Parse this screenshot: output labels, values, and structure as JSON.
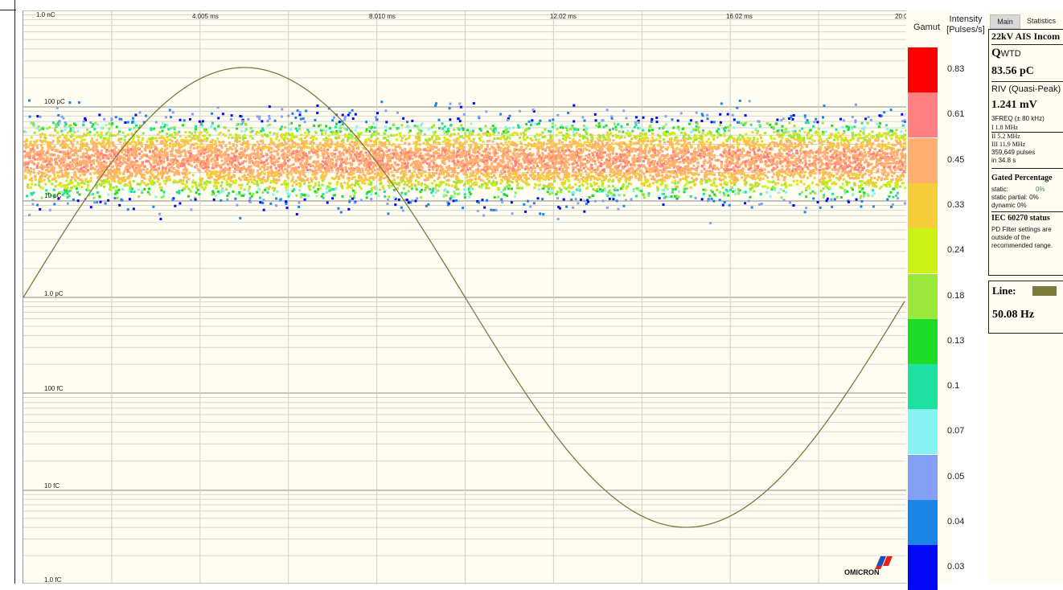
{
  "plot": {
    "x_axis_labels": [
      "4.005 ms",
      "8.010 ms",
      "12.02 ms",
      "16.02 ms",
      "20.0"
    ],
    "y_axis_labels": [
      "1.0 nC",
      "100 pC",
      "10 pC",
      "1.0 pC",
      "100 fC",
      "10 fC",
      "1.0 fC"
    ],
    "sine_color": "#7a7a3c"
  },
  "gamut": {
    "title": "Gamut",
    "intensity_title_line1": "Intensity",
    "intensity_title_line2": "[Pulses/s]",
    "colors": [
      "#ff0000",
      "#ff8080",
      "#ffb070",
      "#f5cc3a",
      "#ccf215",
      "#9ae83a",
      "#1cdc28",
      "#1ee0a0",
      "#86f4f4",
      "#84a0f5",
      "#1a84e8",
      "#0008f5"
    ],
    "labels": [
      "0.83",
      "0.61",
      "0.45",
      "0.33",
      "0.24",
      "0.18",
      "0.13",
      "0.1",
      "0.07",
      "0.05",
      "0.04",
      "0.03"
    ]
  },
  "tabs": {
    "main": "Main",
    "statistics": "Statistics"
  },
  "info": {
    "title": "22kV AIS Incom",
    "q_label": "Q",
    "q_sub": "WTD",
    "q_value": "83.56 pC",
    "riv_label": "RIV (Quasi-Peak)",
    "riv_value": "1.241 mV",
    "freq_label": "3FREQ (± 80 kHz)",
    "freq1": "I   1.8 MHz",
    "freq2": "II  5.2 MHz",
    "freq3": "III 11.9 MHz",
    "pulses": "359,649 pulses",
    "duration": "in 34.8 s",
    "gated_title": "Gated Percentage",
    "static_label": "static:",
    "static_value": "0%",
    "static_partial": "static partial: 0%",
    "dynamic": "dynamic     0%",
    "iec_title": "IEC 60270 status",
    "iec_msg1": "PD Filter settings are",
    "iec_msg2": "outside of the",
    "iec_msg3": "recommended range."
  },
  "line": {
    "label": "Line:",
    "color": "#7a7a3c",
    "frequency": "50.08 Hz"
  },
  "logo": {
    "text": "OMICRON"
  }
}
